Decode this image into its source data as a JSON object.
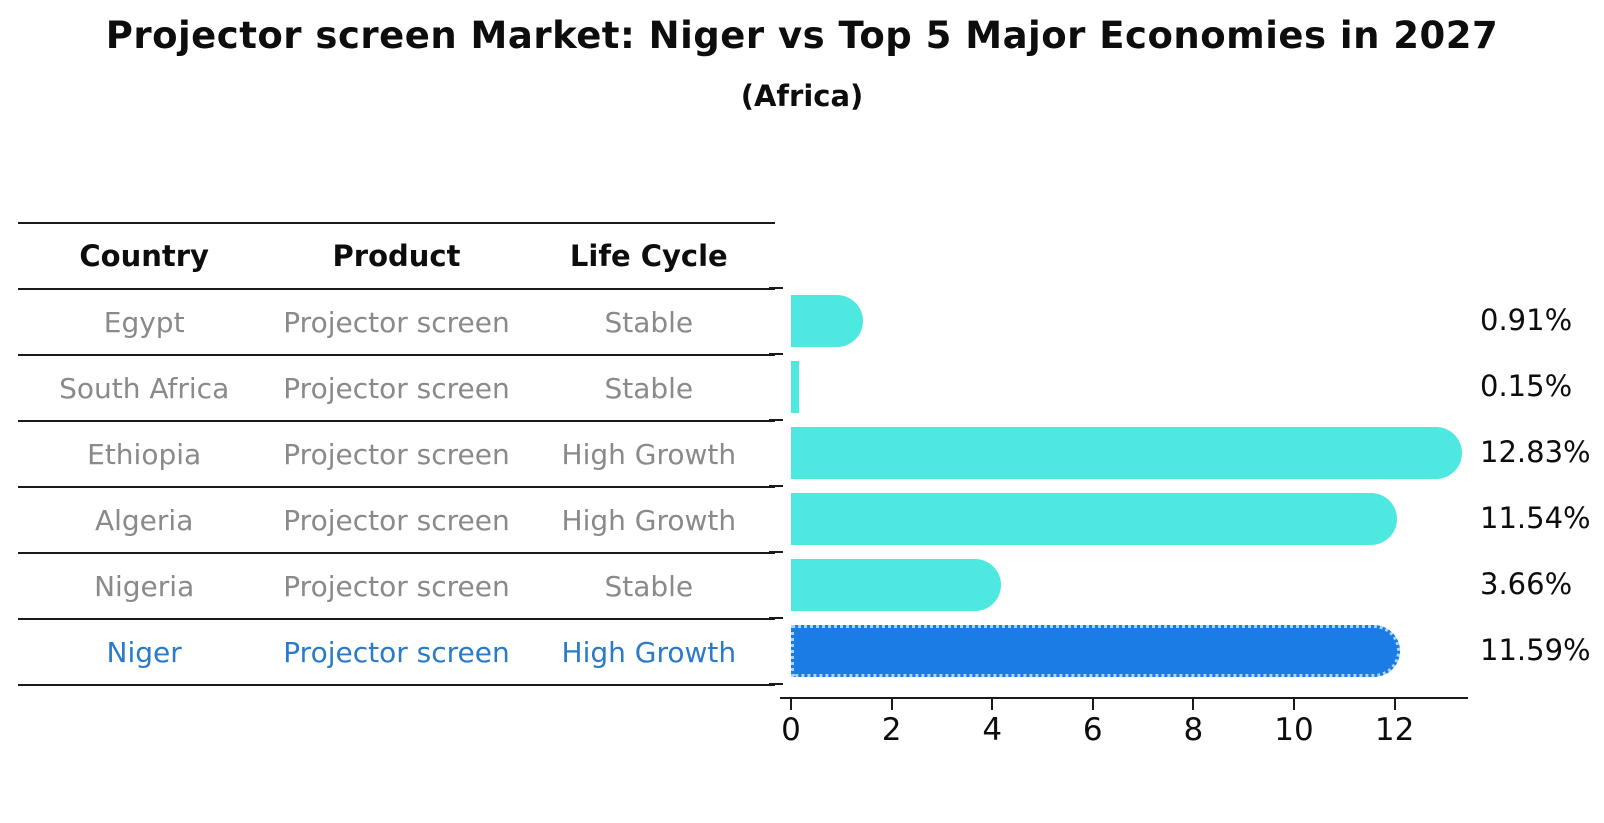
{
  "title": "Projector screen Market: Niger vs Top 5 Major Economies in 2027",
  "subtitle": "(Africa)",
  "table": {
    "headers": [
      "Country",
      "Product",
      "Life Cycle"
    ],
    "rows": [
      {
        "country": "Egypt",
        "product": "Projector screen",
        "life_cycle": "Stable",
        "highlight": false
      },
      {
        "country": "South Africa",
        "product": "Projector screen",
        "life_cycle": "Stable",
        "highlight": false
      },
      {
        "country": "Ethiopia",
        "product": "Projector screen",
        "life_cycle": "High Growth",
        "highlight": false
      },
      {
        "country": "Algeria",
        "product": "Projector screen",
        "life_cycle": "High Growth",
        "highlight": false
      },
      {
        "country": "Nigeria",
        "product": "Projector screen",
        "life_cycle": "Stable",
        "highlight": false
      },
      {
        "country": "Niger",
        "product": "Projector screen",
        "life_cycle": "High Growth",
        "highlight": true
      }
    ]
  },
  "chart_data": {
    "type": "bar",
    "orientation": "horizontal",
    "title": "Projector screen Market: Niger vs Top 5 Major Economies in 2027",
    "subtitle": "(Africa)",
    "categories": [
      "Egypt",
      "South Africa",
      "Ethiopia",
      "Algeria",
      "Nigeria",
      "Niger"
    ],
    "values": [
      0.91,
      0.15,
      12.83,
      11.54,
      3.66,
      11.59
    ],
    "value_labels": [
      "0.91%",
      "0.15%",
      "12.83%",
      "11.54%",
      "3.66%",
      "11.59%"
    ],
    "x_ticks": [
      0,
      2,
      4,
      6,
      8,
      10,
      12
    ],
    "xlim": [
      0,
      13.4
    ],
    "grid": false,
    "legend": "none",
    "highlight_index": 5
  },
  "colors": {
    "bar_default": "#4de8e0",
    "bar_highlight": "#1b7ce6",
    "highlight_text": "#2b7bc9",
    "table_text": "#8a8a8a",
    "axis": "#1a1a1a"
  }
}
